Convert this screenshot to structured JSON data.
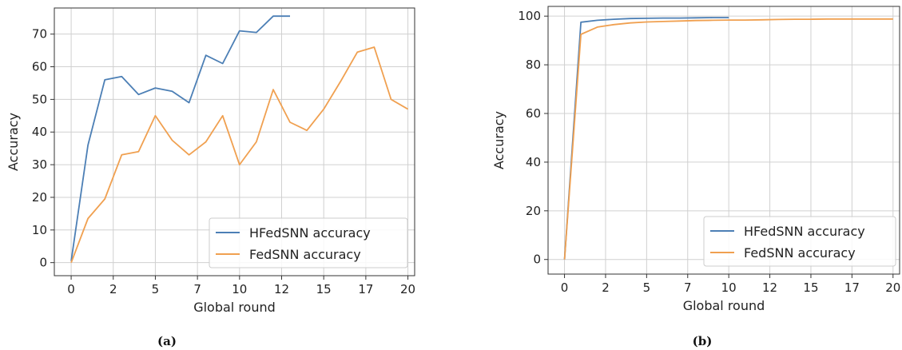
{
  "chart_data": [
    {
      "type": "line",
      "caption": "(a)",
      "xlabel": "Global round",
      "ylabel": "Accuracy",
      "xlim": [
        -1,
        20.4
      ],
      "ylim": [
        -4,
        78
      ],
      "xticks": [
        0,
        2.5,
        5,
        7.5,
        10,
        12.5,
        15,
        17.5,
        20
      ],
      "xtick_labels": [
        "0",
        "2",
        "5",
        "7",
        "10",
        "12",
        "15",
        "17",
        "20"
      ],
      "yticks": [
        0,
        10,
        20,
        30,
        40,
        50,
        60,
        70
      ],
      "grid": true,
      "legend": "bottom-right",
      "series": [
        {
          "name": "HFedSNN accuracy",
          "color": "#4c7fb5",
          "x": [
            0,
            1,
            2,
            3,
            4,
            5,
            6,
            7,
            8,
            9,
            10,
            11,
            12,
            13
          ],
          "y": [
            0.5,
            36,
            56,
            57,
            51.5,
            53.5,
            52.5,
            49,
            63.5,
            61,
            71,
            70.5,
            75.5,
            75.5
          ]
        },
        {
          "name": "FedSNN accuracy",
          "color": "#f0a050",
          "x": [
            0,
            1,
            2,
            3,
            4,
            5,
            6,
            7,
            8,
            9,
            10,
            11,
            12,
            13,
            14,
            15,
            16,
            17,
            18,
            19,
            20
          ],
          "y": [
            0,
            13.5,
            19.5,
            33,
            34,
            45,
            37.5,
            33,
            37,
            45,
            30,
            37,
            53,
            43,
            40.5,
            47,
            55.5,
            64.5,
            66,
            50,
            47
          ]
        }
      ]
    },
    {
      "type": "line",
      "caption": "(b)",
      "xlabel": "Global round",
      "ylabel": "Accuracy",
      "xlim": [
        -1,
        20.4
      ],
      "ylim": [
        -6,
        104
      ],
      "xticks": [
        0,
        2.5,
        5,
        7.5,
        10,
        12.5,
        15,
        17.5,
        20
      ],
      "xtick_labels": [
        "0",
        "2",
        "5",
        "7",
        "10",
        "12",
        "15",
        "17",
        "20"
      ],
      "yticks": [
        0,
        20,
        40,
        60,
        80,
        100
      ],
      "grid": true,
      "legend": "bottom-right",
      "series": [
        {
          "name": "HFedSNN accuracy",
          "color": "#4c7fb5",
          "x": [
            0,
            1,
            2,
            3,
            4,
            5,
            6,
            7,
            8,
            9,
            10
          ],
          "y": [
            0,
            97.5,
            98.3,
            98.7,
            99,
            99.1,
            99.2,
            99.2,
            99.3,
            99.4,
            99.4
          ]
        },
        {
          "name": "FedSNN accuracy",
          "color": "#f0a050",
          "x": [
            0,
            1,
            2,
            3,
            4,
            5,
            6,
            7,
            8,
            9,
            10,
            11,
            12,
            13,
            14,
            15,
            16,
            17,
            18,
            19,
            20
          ],
          "y": [
            0,
            92.5,
            95.5,
            96.5,
            97.2,
            97.6,
            97.8,
            98,
            98.2,
            98.3,
            98.4,
            98.4,
            98.5,
            98.6,
            98.7,
            98.7,
            98.8,
            98.8,
            98.8,
            98.8,
            98.8
          ]
        }
      ]
    }
  ]
}
